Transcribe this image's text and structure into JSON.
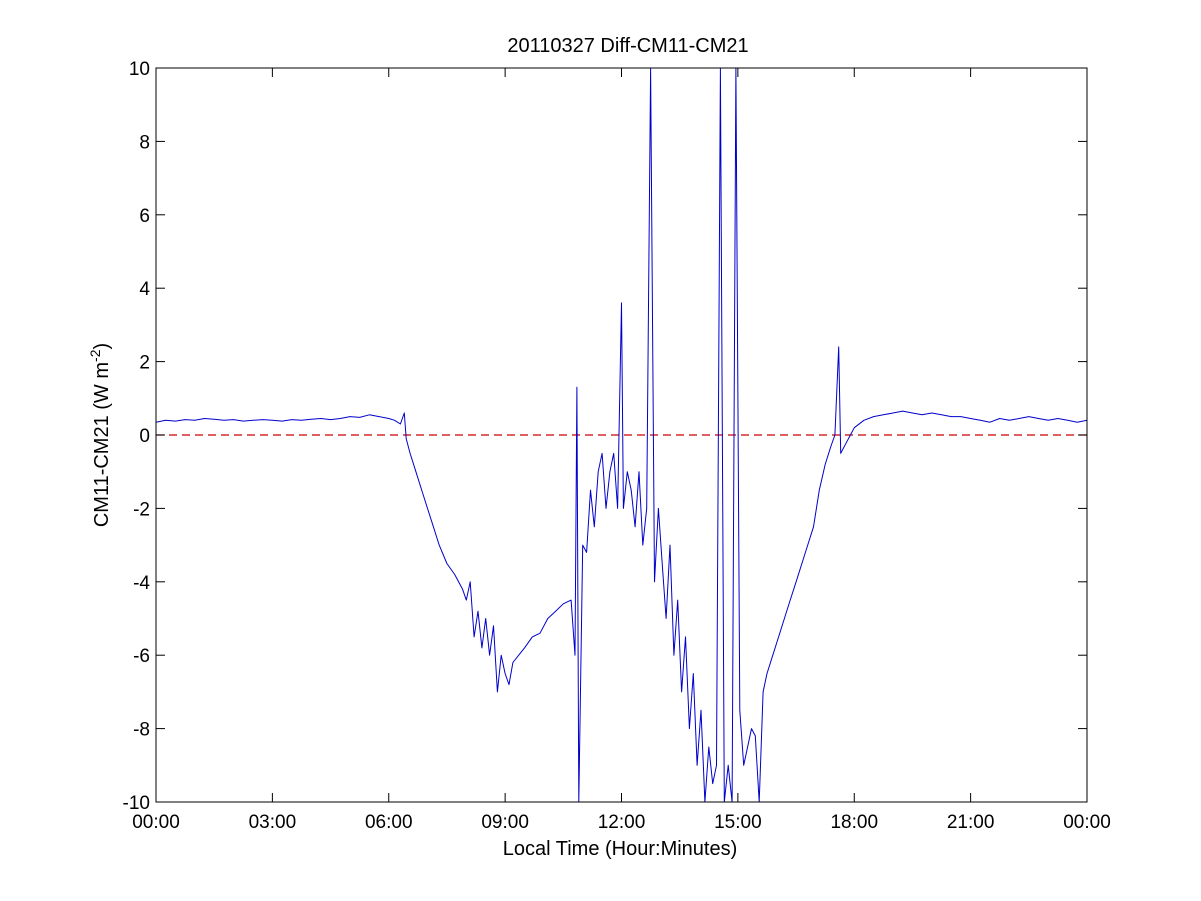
{
  "chart_data": {
    "type": "line",
    "title": "20110327 Diff-CM11-CM21",
    "xlabel": "Local Time (Hour:Minutes)",
    "ylabel": "CM11-CM21 (W m",
    "ylabel_superscript": "-2",
    "ylabel_close": ")",
    "xlim": [
      0,
      24
    ],
    "ylim": [
      -10,
      10
    ],
    "x_ticks": [
      {
        "value": 0,
        "label": "00:00"
      },
      {
        "value": 3,
        "label": "03:00"
      },
      {
        "value": 6,
        "label": "06:00"
      },
      {
        "value": 9,
        "label": "09:00"
      },
      {
        "value": 12,
        "label": "12:00"
      },
      {
        "value": 15,
        "label": "15:00"
      },
      {
        "value": 18,
        "label": "18:00"
      },
      {
        "value": 21,
        "label": "21:00"
      },
      {
        "value": 24,
        "label": "00:00"
      }
    ],
    "y_ticks": [
      {
        "value": 10,
        "label": "10"
      },
      {
        "value": 8,
        "label": "8"
      },
      {
        "value": 6,
        "label": "6"
      },
      {
        "value": 4,
        "label": "4"
      },
      {
        "value": 2,
        "label": "2"
      },
      {
        "value": 0,
        "label": "0"
      },
      {
        "value": -2,
        "label": "-2"
      },
      {
        "value": -4,
        "label": "-4"
      },
      {
        "value": -6,
        "label": "-6"
      },
      {
        "value": -8,
        "label": "-8"
      },
      {
        "value": -10,
        "label": "-10"
      }
    ],
    "grid": false,
    "reference_line": {
      "y": 0,
      "color": "#cc0000",
      "style": "dashed"
    },
    "series": [
      {
        "color": "#0000cc",
        "x": [
          0.0,
          0.25,
          0.5,
          0.75,
          1.0,
          1.25,
          1.5,
          1.75,
          2.0,
          2.25,
          2.5,
          2.75,
          3.0,
          3.25,
          3.5,
          3.75,
          4.0,
          4.25,
          4.5,
          4.75,
          5.0,
          5.25,
          5.5,
          5.75,
          6.0,
          6.15,
          6.3,
          6.4,
          6.45,
          6.55,
          6.7,
          6.85,
          7.0,
          7.15,
          7.3,
          7.5,
          7.7,
          7.9,
          8.0,
          8.1,
          8.2,
          8.3,
          8.4,
          8.5,
          8.6,
          8.7,
          8.8,
          8.9,
          9.0,
          9.1,
          9.2,
          9.35,
          9.5,
          9.7,
          9.9,
          10.1,
          10.3,
          10.5,
          10.7,
          10.8,
          10.85,
          10.9,
          11.0,
          11.1,
          11.2,
          11.3,
          11.4,
          11.5,
          11.6,
          11.7,
          11.8,
          11.9,
          12.0,
          12.05,
          12.15,
          12.25,
          12.35,
          12.45,
          12.55,
          12.65,
          12.75,
          12.85,
          12.95,
          13.05,
          13.15,
          13.25,
          13.35,
          13.45,
          13.55,
          13.65,
          13.75,
          13.85,
          13.95,
          14.05,
          14.15,
          14.25,
          14.35,
          14.45,
          14.55,
          14.65,
          14.75,
          14.85,
          14.95,
          15.05,
          15.15,
          15.25,
          15.35,
          15.45,
          15.55,
          15.65,
          15.75,
          15.9,
          16.05,
          16.2,
          16.35,
          16.5,
          16.65,
          16.8,
          16.95,
          17.1,
          17.25,
          17.4,
          17.5,
          17.6,
          17.65,
          17.7,
          17.8,
          17.9,
          18.0,
          18.25,
          18.5,
          18.75,
          19.0,
          19.25,
          19.5,
          19.75,
          20.0,
          20.25,
          20.5,
          20.75,
          21.0,
          21.25,
          21.5,
          21.75,
          22.0,
          22.25,
          22.5,
          22.75,
          23.0,
          23.25,
          23.5,
          23.75,
          24.0
        ],
        "values": [
          0.35,
          0.4,
          0.38,
          0.42,
          0.4,
          0.45,
          0.43,
          0.4,
          0.42,
          0.38,
          0.4,
          0.42,
          0.4,
          0.38,
          0.42,
          0.4,
          0.43,
          0.45,
          0.42,
          0.45,
          0.5,
          0.48,
          0.55,
          0.5,
          0.45,
          0.4,
          0.3,
          0.6,
          -0.1,
          -0.5,
          -1.0,
          -1.5,
          -2.0,
          -2.5,
          -3.0,
          -3.5,
          -3.8,
          -4.2,
          -4.5,
          -4.0,
          -5.5,
          -4.8,
          -5.8,
          -5.0,
          -6.0,
          -5.2,
          -7.0,
          -6.0,
          -6.5,
          -6.8,
          -6.2,
          -6.0,
          -5.8,
          -5.5,
          -5.4,
          -5.0,
          -4.8,
          -4.6,
          -4.5,
          -6.0,
          1.3,
          -10.0,
          -3.0,
          -3.2,
          -1.5,
          -2.5,
          -1.0,
          -0.5,
          -2.0,
          -1.0,
          -0.5,
          -2.0,
          3.6,
          -2.0,
          -1.0,
          -1.5,
          -2.5,
          -1.0,
          -3.0,
          -2.0,
          10.0,
          -4.0,
          -2.0,
          -3.5,
          -5.0,
          -3.0,
          -6.0,
          -4.5,
          -7.0,
          -5.5,
          -8.0,
          -6.5,
          -9.0,
          -7.5,
          -10.0,
          -8.5,
          -9.5,
          -9.0,
          10.0,
          -10.0,
          -9.0,
          -10.0,
          10.0,
          -7.5,
          -9.0,
          -8.5,
          -8.0,
          -8.2,
          -10.0,
          -7.0,
          -6.5,
          -6.0,
          -5.5,
          -5.0,
          -4.5,
          -4.0,
          -3.5,
          -3.0,
          -2.5,
          -1.5,
          -0.8,
          -0.3,
          0.0,
          2.4,
          -0.5,
          -0.4,
          -0.2,
          0.0,
          0.2,
          0.4,
          0.5,
          0.55,
          0.6,
          0.65,
          0.6,
          0.55,
          0.6,
          0.55,
          0.5,
          0.5,
          0.45,
          0.4,
          0.35,
          0.45,
          0.4,
          0.45,
          0.5,
          0.45,
          0.4,
          0.45,
          0.4,
          0.35,
          0.4
        ]
      }
    ]
  }
}
